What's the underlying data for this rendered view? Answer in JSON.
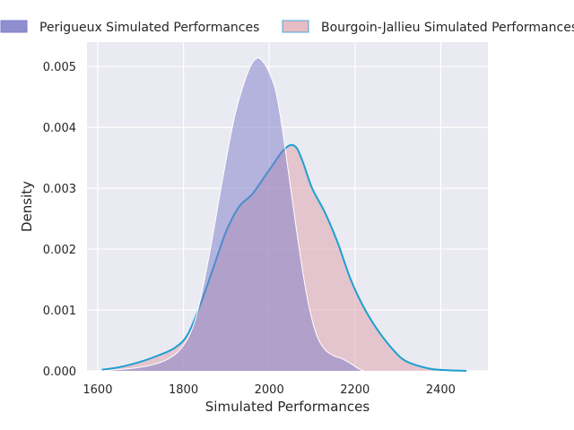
{
  "chart_data": {
    "type": "area",
    "title": "",
    "xlabel": "Simulated Performances",
    "ylabel": "Density",
    "xlim": [
      1575,
      2510
    ],
    "ylim": [
      0,
      0.0054
    ],
    "xticks": [
      1600,
      1800,
      2000,
      2200,
      2400
    ],
    "yticks": [
      0.0,
      0.001,
      0.002,
      0.003,
      0.004,
      0.005
    ],
    "ytick_labels": [
      "0.000",
      "0.001",
      "0.002",
      "0.003",
      "0.004",
      "0.005"
    ],
    "grid": true,
    "legend_position": "top",
    "series": [
      {
        "name": "Perigueux Simulated Performances",
        "fill_color": "#7b7bc8",
        "line_color": "#ffffff",
        "x": [
          1610,
          1700,
          1760,
          1800,
          1830,
          1860,
          1890,
          1920,
          1950,
          1970,
          1985,
          2000,
          2015,
          2030,
          2050,
          2070,
          2090,
          2110,
          2130,
          2150,
          2170,
          2190,
          2210,
          2220
        ],
        "y": [
          0.0,
          6e-05,
          0.00018,
          0.00042,
          0.0009,
          0.0019,
          0.0031,
          0.0042,
          0.0049,
          0.00513,
          0.00508,
          0.0049,
          0.0046,
          0.004,
          0.003,
          0.002,
          0.00115,
          0.0006,
          0.00035,
          0.00025,
          0.0002,
          0.00012,
          3e-05,
          0.0
        ]
      },
      {
        "name": "Bourgoin-Jallieu Simulated Performances",
        "fill_color": "#dda0a8",
        "line_color": "#1f9fd0",
        "x": [
          1610,
          1650,
          1700,
          1740,
          1780,
          1810,
          1840,
          1870,
          1900,
          1930,
          1960,
          1990,
          2010,
          2030,
          2050,
          2065,
          2080,
          2100,
          2130,
          2160,
          2190,
          2220,
          2250,
          2280,
          2310,
          2340,
          2380,
          2420,
          2460
        ],
        "y": [
          2e-05,
          6e-05,
          0.00015,
          0.00025,
          0.00038,
          0.0006,
          0.0011,
          0.0017,
          0.0023,
          0.0027,
          0.0029,
          0.0032,
          0.0034,
          0.0036,
          0.00371,
          0.00365,
          0.0034,
          0.003,
          0.0026,
          0.0021,
          0.0015,
          0.00105,
          0.0007,
          0.00042,
          0.0002,
          0.0001,
          3e-05,
          1e-05,
          0.0
        ]
      }
    ]
  }
}
